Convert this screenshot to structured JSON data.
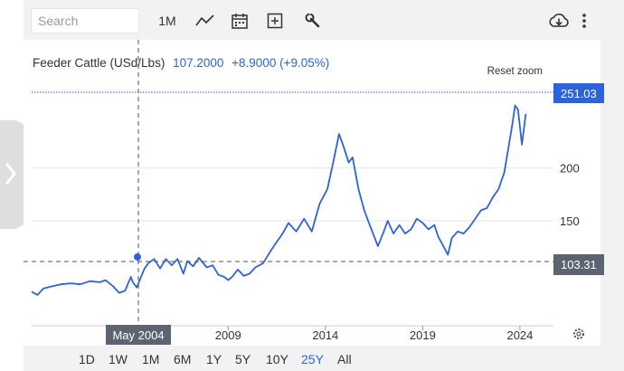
{
  "toolbar": {
    "search_placeholder": "Search",
    "interval_label": "1M",
    "icons": [
      "line-chart-icon",
      "calendar-icon",
      "plus-square-icon",
      "wrench-icon",
      "cloud-download-icon",
      "more-vertical-icon"
    ]
  },
  "legend": {
    "name": "Feeder Cattle (USd/Lbs)",
    "price": "107.2000",
    "change": "+8.9000 (+9.05%)"
  },
  "reset_zoom_label": "Reset zoom",
  "crosshair_date": "May 2004",
  "last_price_badge": "251.03",
  "cursor_price_badge": "103.31",
  "ranges": [
    "1D",
    "1W",
    "1M",
    "6M",
    "1Y",
    "5Y",
    "10Y",
    "25Y",
    "All"
  ],
  "active_range": "25Y",
  "colors": {
    "line": "#2d63d8",
    "accent": "#2d63d8",
    "badge_dark": "#5b6470"
  },
  "chart_data": {
    "type": "line",
    "x_ticks": [
      "2009",
      "2014",
      "2019",
      "2024"
    ],
    "y_ticks": [
      150,
      200
    ],
    "ylim": [
      56,
      280
    ],
    "xlim": [
      1999.0,
      2024.8
    ],
    "grid": "horizontal",
    "series": [
      {
        "name": "Feeder Cattle (USd/Lbs)",
        "points": [
          [
            1999.0,
            83
          ],
          [
            1999.3,
            80
          ],
          [
            1999.6,
            86
          ],
          [
            2000.0,
            88
          ],
          [
            2000.5,
            90
          ],
          [
            2001.0,
            91
          ],
          [
            2001.5,
            90
          ],
          [
            2002.0,
            93
          ],
          [
            2002.5,
            92
          ],
          [
            2002.8,
            94
          ],
          [
            2003.2,
            88
          ],
          [
            2003.5,
            82
          ],
          [
            2003.8,
            84
          ],
          [
            2004.1,
            97
          ],
          [
            2004.2,
            92
          ],
          [
            2004.4,
            87
          ],
          [
            2004.6,
            96
          ],
          [
            2004.8,
            105
          ],
          [
            2005.0,
            110
          ],
          [
            2005.3,
            114
          ],
          [
            2005.6,
            105
          ],
          [
            2005.9,
            114
          ],
          [
            2006.2,
            108
          ],
          [
            2006.5,
            114
          ],
          [
            2006.8,
            100
          ],
          [
            2007.0,
            112
          ],
          [
            2007.3,
            107
          ],
          [
            2007.6,
            115
          ],
          [
            2008.0,
            106
          ],
          [
            2008.3,
            108
          ],
          [
            2008.6,
            99
          ],
          [
            2008.9,
            97
          ],
          [
            2009.1,
            94
          ],
          [
            2009.3,
            97
          ],
          [
            2009.6,
            104
          ],
          [
            2009.9,
            98
          ],
          [
            2010.2,
            100
          ],
          [
            2010.5,
            106
          ],
          [
            2010.9,
            110
          ],
          [
            2011.3,
            122
          ],
          [
            2011.6,
            130
          ],
          [
            2011.9,
            138
          ],
          [
            2012.2,
            148
          ],
          [
            2012.6,
            140
          ],
          [
            2013.0,
            152
          ],
          [
            2013.4,
            140
          ],
          [
            2013.8,
            166
          ],
          [
            2014.2,
            180
          ],
          [
            2014.5,
            205
          ],
          [
            2014.8,
            232
          ],
          [
            2015.0,
            222
          ],
          [
            2015.3,
            205
          ],
          [
            2015.5,
            210
          ],
          [
            2015.8,
            180
          ],
          [
            2016.1,
            160
          ],
          [
            2016.4,
            145
          ],
          [
            2016.8,
            126
          ],
          [
            2017.1,
            140
          ],
          [
            2017.3,
            150
          ],
          [
            2017.6,
            138
          ],
          [
            2017.9,
            146
          ],
          [
            2018.2,
            138
          ],
          [
            2018.5,
            142
          ],
          [
            2018.8,
            152
          ],
          [
            2019.1,
            148
          ],
          [
            2019.4,
            142
          ],
          [
            2019.7,
            146
          ],
          [
            2019.9,
            135
          ],
          [
            2020.2,
            125
          ],
          [
            2020.4,
            118
          ],
          [
            2020.6,
            134
          ],
          [
            2020.9,
            140
          ],
          [
            2021.2,
            138
          ],
          [
            2021.5,
            144
          ],
          [
            2021.8,
            152
          ],
          [
            2022.1,
            160
          ],
          [
            2022.4,
            162
          ],
          [
            2022.7,
            172
          ],
          [
            2023.0,
            180
          ],
          [
            2023.3,
            196
          ],
          [
            2023.5,
            218
          ],
          [
            2023.7,
            240
          ],
          [
            2023.85,
            259
          ],
          [
            2024.0,
            255
          ],
          [
            2024.2,
            222
          ],
          [
            2024.4,
            251
          ]
        ]
      }
    ]
  }
}
